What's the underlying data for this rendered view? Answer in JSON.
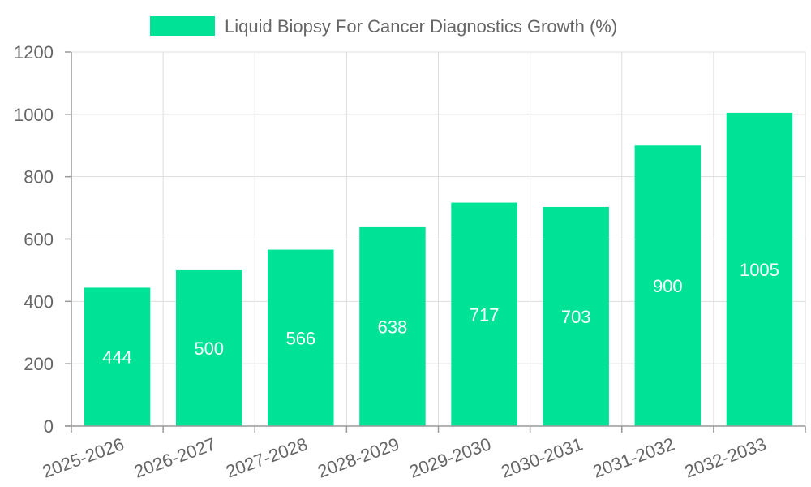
{
  "chart_data": {
    "type": "bar",
    "categories": [
      "2025-2026",
      "2026-2027",
      "2027-2028",
      "2028-2029",
      "2029-2030",
      "2030-2031",
      "2031-2032",
      "2032-2033"
    ],
    "series": [
      {
        "name": "Liquid Biopsy For Cancer Diagnostics Growth (%)",
        "values": [
          444,
          500,
          566,
          638,
          717,
          703,
          900,
          1005
        ],
        "color": "#00e396"
      }
    ],
    "ylim": [
      0,
      1200
    ],
    "yticks": [
      0,
      200,
      400,
      600,
      800,
      1000,
      1200
    ],
    "grid": true,
    "legend_position": "top-center",
    "data_labels": true,
    "title": "",
    "xlabel": "",
    "ylabel": ""
  }
}
